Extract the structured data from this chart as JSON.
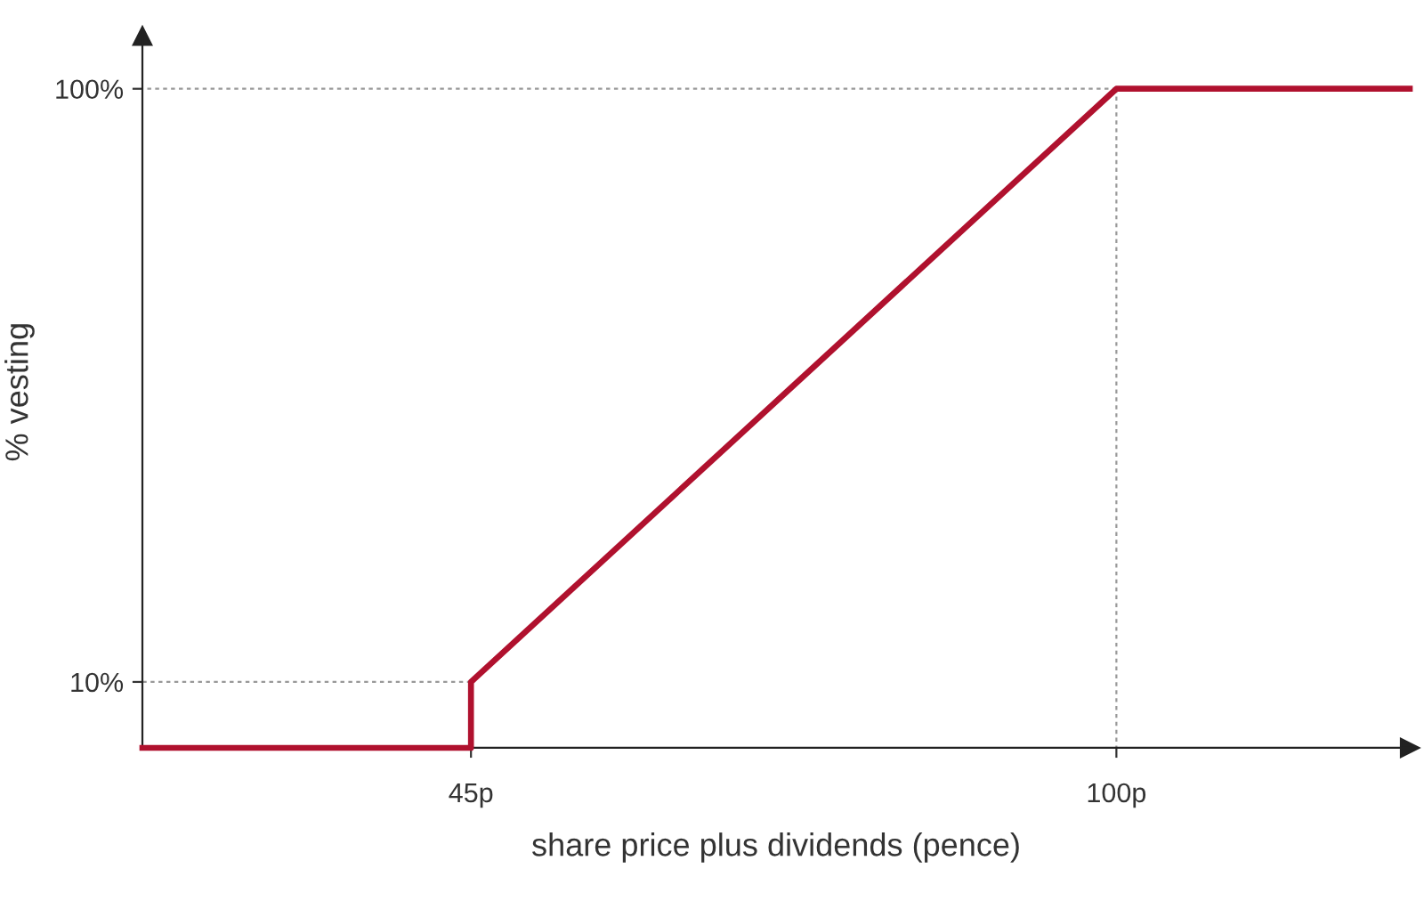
{
  "chart_data": {
    "type": "line",
    "xlabel": "share price plus dividends (pence)",
    "ylabel": "% vesting",
    "xlim": [
      17,
      125
    ],
    "ylim": [
      0,
      108
    ],
    "xticks": [
      {
        "value": 45,
        "label": "45p"
      },
      {
        "value": 100,
        "label": "100p"
      }
    ],
    "yticks": [
      {
        "value": 10,
        "label": "10%"
      },
      {
        "value": 100,
        "label": "100%"
      }
    ],
    "grid": false,
    "legend": false,
    "series": [
      {
        "x": [
          45,
          17
        ],
        "values": [
          10,
          10
        ],
        "color": "#999999",
        "line_style": "dashed"
      },
      {
        "x": [
          100,
          17
        ],
        "values": [
          100,
          100
        ],
        "color": "#999999",
        "line_style": "dashed"
      },
      {
        "x": [
          100,
          100
        ],
        "values": [
          100,
          0
        ],
        "color": "#999999",
        "line_style": "dashed"
      },
      {
        "x": [
          17,
          45,
          45,
          100,
          125
        ],
        "values": [
          0,
          0,
          10,
          100,
          100
        ],
        "color": "#b0112e",
        "line_style": "solid"
      }
    ]
  }
}
